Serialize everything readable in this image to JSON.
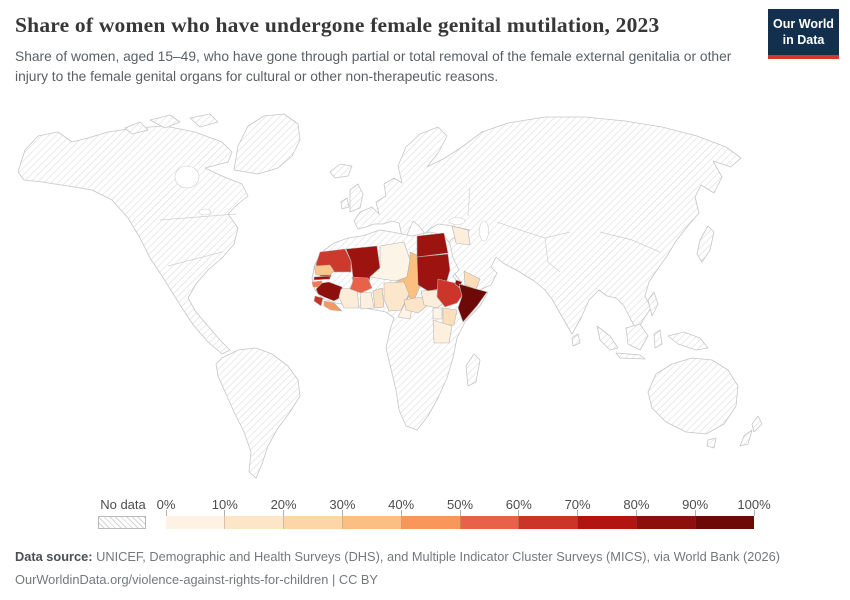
{
  "header": {
    "title": "Share of women who have undergone female genital mutilation, 2023",
    "subtitle": "Share of women, aged 15–49, who have gone through partial or total removal of the female external genitalia or other injury to the female genital organs for cultural or other non-therapeutic reasons.",
    "logo": {
      "line1": "Our World",
      "line2": "in Data",
      "bg_color": "#12304e",
      "accent_color": "#d8352a"
    }
  },
  "legend": {
    "no_data_label": "No data",
    "tick_labels": [
      "0%",
      "10%",
      "20%",
      "30%",
      "40%",
      "50%",
      "60%",
      "70%",
      "80%",
      "90%",
      "100%"
    ],
    "bin_colors": [
      "#fdf2e3",
      "#fde6c8",
      "#fcd6a6",
      "#fbbf84",
      "#f9975a",
      "#ea614a",
      "#cd3428",
      "#b21511",
      "#8d0f0c",
      "#6d0a07"
    ]
  },
  "map": {
    "no_data_style": "diagonal-hatch",
    "countries": [
      {
        "name": "Mauritania",
        "color": "#cc3a2e"
      },
      {
        "name": "Mali",
        "color": "#9c1310"
      },
      {
        "name": "Niger",
        "color": "#fdf4e8"
      },
      {
        "name": "Chad",
        "color": "#fbbf80"
      },
      {
        "name": "Senegal",
        "color": "#fac78d"
      },
      {
        "name": "Gambia",
        "color": "#9c1310"
      },
      {
        "name": "Guinea-Bissau",
        "color": "#f0794f"
      },
      {
        "name": "Guinea",
        "color": "#8d0f0c"
      },
      {
        "name": "Sierra Leone",
        "color": "#c73327"
      },
      {
        "name": "Liberia",
        "color": "#f59a5e"
      },
      {
        "name": "Côte d'Ivoire",
        "color": "#fdecd8"
      },
      {
        "name": "Burkina Faso",
        "color": "#e8624a"
      },
      {
        "name": "Ghana",
        "color": "#fdf0e0"
      },
      {
        "name": "Togo & Benin",
        "color": "#fbe2c2"
      },
      {
        "name": "Nigeria",
        "color": "#fde7cc"
      },
      {
        "name": "Cameroon",
        "color": "#fdf3e6"
      },
      {
        "name": "Central African Republic",
        "color": "#fce4c8"
      },
      {
        "name": "Sudan",
        "color": "#9c1310"
      },
      {
        "name": "South Sudan",
        "color": "#fdeedb"
      },
      {
        "name": "Egypt",
        "color": "#9c1310"
      },
      {
        "name": "Ethiopia",
        "color": "#cb352a"
      },
      {
        "name": "Djibouti",
        "color": "#8d0f0c"
      },
      {
        "name": "Somalia",
        "color": "#6d0a07"
      },
      {
        "name": "Kenya",
        "color": "#fce0bc"
      },
      {
        "name": "Uganda",
        "color": "#fdf3e6"
      },
      {
        "name": "Tanzania",
        "color": "#fdf0de"
      },
      {
        "name": "Iraq",
        "color": "#fdeedb"
      },
      {
        "name": "Yemen",
        "color": "#fbddb8"
      }
    ]
  },
  "chart_data": {
    "type": "choropleth_map",
    "title": "Share of women who have undergone female genital mutilation, 2023",
    "unit": "%",
    "scale_bins_pct": [
      0,
      10,
      20,
      30,
      40,
      50,
      60,
      70,
      80,
      90,
      100
    ],
    "legend_position": "bottom",
    "no_data": "hatched (all countries outside the list below)",
    "series": [
      {
        "country": "Somalia",
        "value_pct_est": 99
      },
      {
        "country": "Guinea",
        "value_pct_est": 92
      },
      {
        "country": "Djibouti",
        "value_pct_est": 90
      },
      {
        "country": "Mali",
        "value_pct_est": 87
      },
      {
        "country": "Sudan",
        "value_pct_est": 87
      },
      {
        "country": "Egypt",
        "value_pct_est": 86
      },
      {
        "country": "Gambia",
        "value_pct_est": 75
      },
      {
        "country": "Sierra Leone",
        "value_pct_est": 68
      },
      {
        "country": "Mauritania",
        "value_pct_est": 66
      },
      {
        "country": "Ethiopia",
        "value_pct_est": 65
      },
      {
        "country": "Burkina Faso",
        "value_pct_est": 56
      },
      {
        "country": "Guinea-Bissau",
        "value_pct_est": 52
      },
      {
        "country": "Liberia",
        "value_pct_est": 44
      },
      {
        "country": "Chad",
        "value_pct_est": 36
      },
      {
        "country": "Senegal",
        "value_pct_est": 29
      },
      {
        "country": "Kenya",
        "value_pct_est": 23
      },
      {
        "country": "Yemen",
        "value_pct_est": 19
      },
      {
        "country": "Central African Republic",
        "value_pct_est": 18
      },
      {
        "country": "Nigeria",
        "value_pct_est": 14
      },
      {
        "country": "Togo & Benin",
        "value_pct_est": 12
      },
      {
        "country": "Côte d'Ivoire",
        "value_pct_est": 12
      },
      {
        "country": "South Sudan",
        "value_pct_est": 8
      },
      {
        "country": "Iraq",
        "value_pct_est": 7
      },
      {
        "country": "Ghana",
        "value_pct_est": 5
      },
      {
        "country": "Tanzania",
        "value_pct_est": 5
      },
      {
        "country": "Niger",
        "value_pct_est": 2
      },
      {
        "country": "Uganda",
        "value_pct_est": 2
      },
      {
        "country": "Cameroon",
        "value_pct_est": 2
      }
    ]
  },
  "footer": {
    "source_label": "Data source:",
    "source_text": " UNICEF, Demographic and Health Surveys (DHS), and Multiple Indicator Cluster Surveys (MICS), via World Bank (2026)",
    "url_line": "OurWorldinData.org/violence-against-rights-for-children | CC BY"
  }
}
